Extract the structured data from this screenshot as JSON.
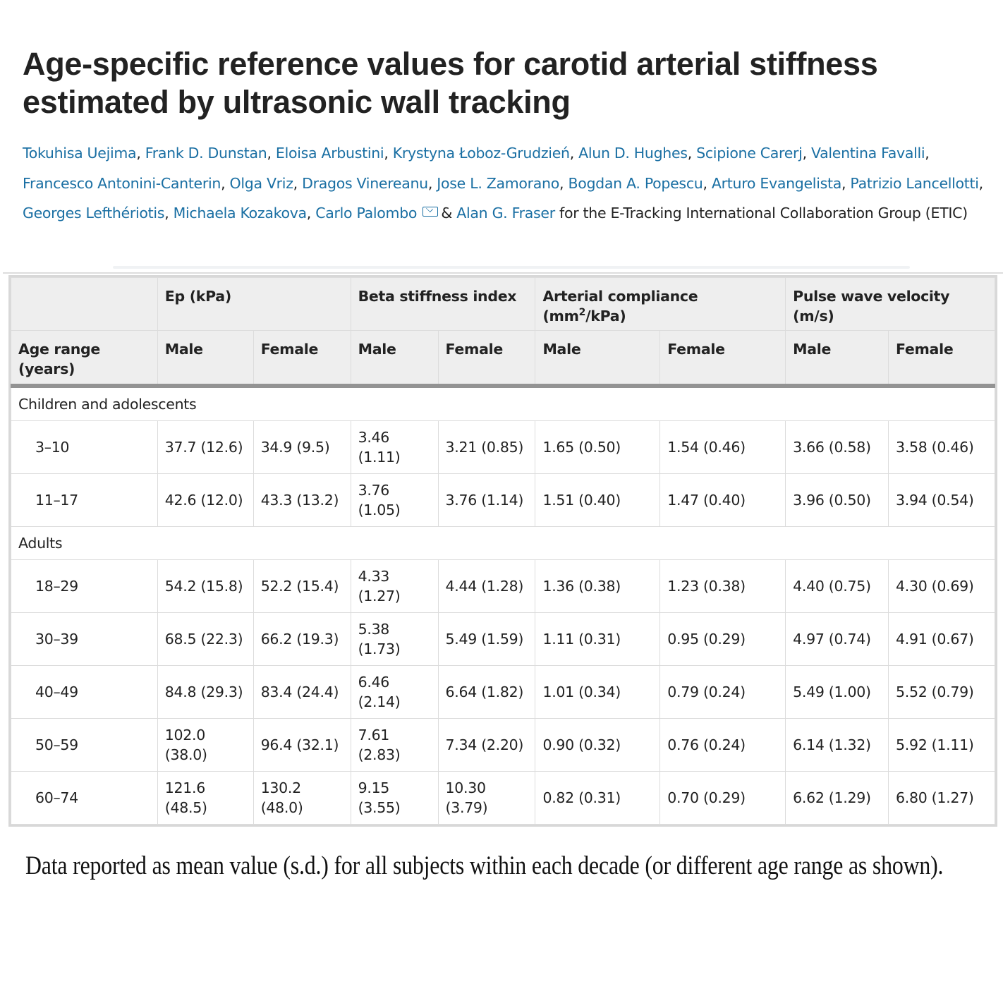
{
  "title": "Age-specific reference values for carotid arterial stiffness estimated by ultrasonic wall tracking",
  "authors": {
    "names": [
      "Tokuhisa Uejima",
      "Frank D. Dunstan",
      "Eloisa Arbustini",
      "Krystyna Łoboz-Grudzień",
      "Alun D. Hughes",
      "Scipione Carerj",
      "Valentina Favalli",
      "Francesco Antonini-Canterin",
      "Olga Vriz",
      "Dragos Vinereanu",
      "Jose L. Zamorano",
      "Bogdan A. Popescu",
      "Arturo Evangelista",
      "Patrizio Lancellotti",
      "Georges Lefthériotis",
      "Michaela Kozakova",
      "Carlo Palombo",
      "Alan G. Fraser"
    ],
    "amp": "&",
    "suffix": "for the E-Tracking International Collaboration Group (ETIC)",
    "mail_icon": "envelope-icon"
  },
  "table": {
    "group_headers": [
      "",
      "Ep (kPa)",
      "Beta stiffness index",
      "Arterial compliance (mm",
      "2",
      "/kPa)",
      "Pulse wave velocity (m/s)"
    ],
    "sub_headers": [
      "Age range (years)",
      "Male",
      "Female",
      "Male",
      "Female",
      "Male",
      "Female",
      "Male",
      "Female"
    ],
    "groups": [
      {
        "label": "Children and adolescents",
        "rows": [
          [
            "3–10",
            "37.7 (12.6)",
            "34.9 (9.5)",
            "3.46 (1.11)",
            "3.21 (0.85)",
            "1.65 (0.50)",
            "1.54 (0.46)",
            "3.66 (0.58)",
            "3.58 (0.46)"
          ],
          [
            "11–17",
            "42.6 (12.0)",
            "43.3 (13.2)",
            "3.76 (1.05)",
            "3.76 (1.14)",
            "1.51 (0.40)",
            "1.47 (0.40)",
            "3.96 (0.50)",
            "3.94 (0.54)"
          ]
        ]
      },
      {
        "label": "Adults",
        "rows": [
          [
            "18–29",
            "54.2 (15.8)",
            "52.2 (15.4)",
            "4.33 (1.27)",
            "4.44 (1.28)",
            "1.36 (0.38)",
            "1.23 (0.38)",
            "4.40 (0.75)",
            "4.30 (0.69)"
          ],
          [
            "30–39",
            "68.5 (22.3)",
            "66.2 (19.3)",
            "5.38 (1.73)",
            "5.49 (1.59)",
            "1.11 (0.31)",
            "0.95 (0.29)",
            "4.97 (0.74)",
            "4.91 (0.67)"
          ],
          [
            "40–49",
            "84.8 (29.3)",
            "83.4 (24.4)",
            "6.46 (2.14)",
            "6.64 (1.82)",
            "1.01 (0.34)",
            "0.79 (0.24)",
            "5.49 (1.00)",
            "5.52 (0.79)"
          ],
          [
            "50–59",
            "102.0 (38.0)",
            "96.4 (32.1)",
            "7.61 (2.83)",
            "7.34 (2.20)",
            "0.90 (0.32)",
            "0.76 (0.24)",
            "6.14 (1.32)",
            "5.92 (1.11)"
          ],
          [
            "60–74",
            "121.6 (48.5)",
            "130.2 (48.0)",
            "9.15 (3.55)",
            "10.30 (3.79)",
            "0.82 (0.31)",
            "0.70 (0.29)",
            "6.62 (1.29)",
            "6.80 (1.27)"
          ]
        ]
      }
    ]
  },
  "footnote": "Data reported as mean value (s.d.) for all subjects within each decade (or different age range as shown)."
}
